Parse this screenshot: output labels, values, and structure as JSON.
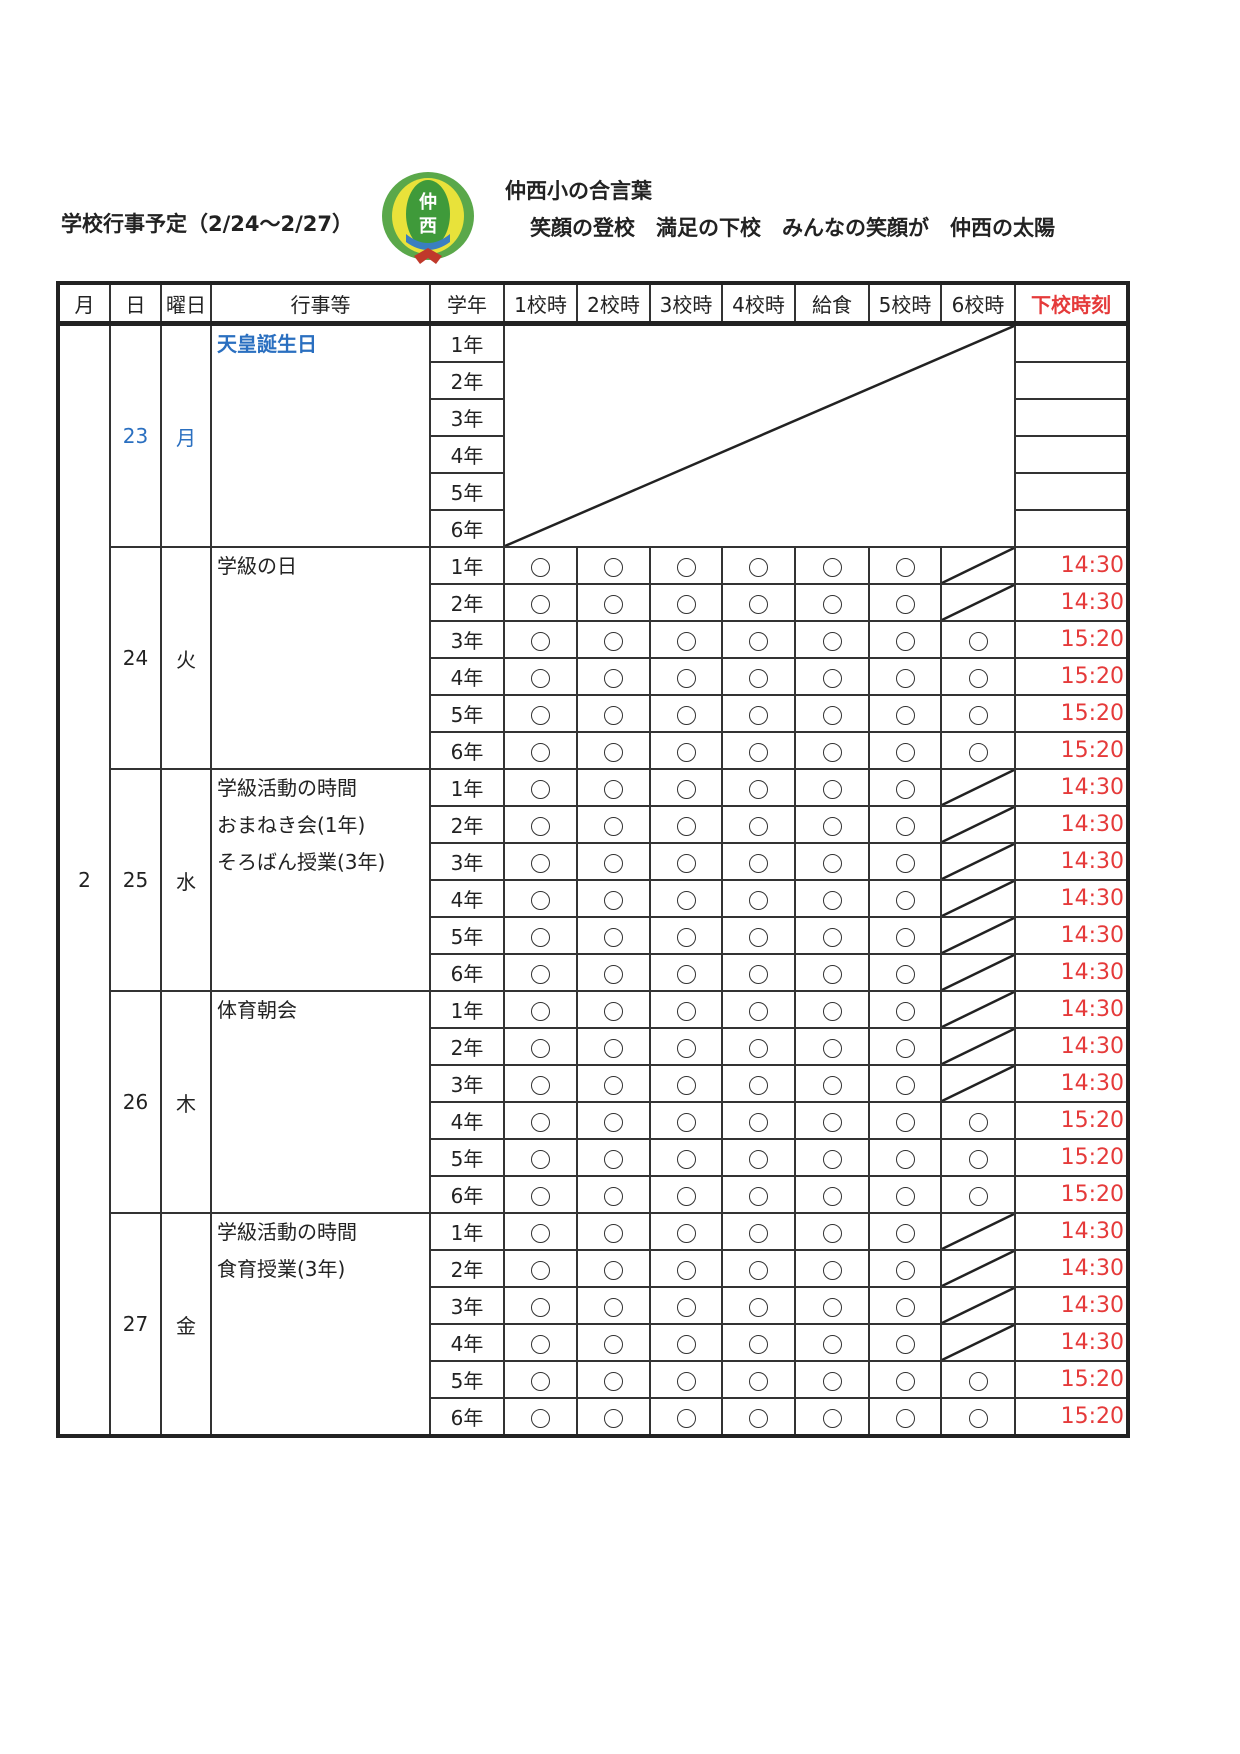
{
  "title": "学校行事予定（2/24～2/27）",
  "logo_text": "仲西",
  "motto_title": "仲西小の合言葉",
  "motto": "笑顔の登校　満足の下校　みんなの笑顔が　仲西の太陽",
  "colors": {
    "holiday": "#2a6fc0",
    "dismissal": "#e53a3a",
    "logo_green": "#3f9a3a",
    "logo_yellow": "#e8e23a"
  },
  "headers": [
    "月",
    "日",
    "曜日",
    "行事等",
    "学年",
    "1校時",
    "2校時",
    "3校時",
    "4校時",
    "給食",
    "5校時",
    "6校時",
    "下校時刻"
  ],
  "month": "2",
  "grades": [
    "1年",
    "2年",
    "3年",
    "4年",
    "5年",
    "6年"
  ],
  "days": [
    {
      "day": "23",
      "weekday": "月",
      "holiday": true,
      "events": [
        "天皇誕生日"
      ],
      "rows": []
    },
    {
      "day": "24",
      "weekday": "火",
      "events": [
        "学級の日"
      ],
      "rows": [
        {
          "p6": "slash",
          "time": "14:30"
        },
        {
          "p6": "slash",
          "time": "14:30"
        },
        {
          "p6": "○",
          "time": "15:20"
        },
        {
          "p6": "○",
          "time": "15:20"
        },
        {
          "p6": "○",
          "time": "15:20"
        },
        {
          "p6": "○",
          "time": "15:20"
        }
      ]
    },
    {
      "day": "25",
      "weekday": "水",
      "events": [
        "学級活動の時間",
        "おまねき会(1年)",
        "そろばん授業(3年)"
      ],
      "rows": [
        {
          "p6": "slash",
          "time": "14:30"
        },
        {
          "p6": "slash",
          "time": "14:30"
        },
        {
          "p6": "slash",
          "time": "14:30"
        },
        {
          "p6": "slash",
          "time": "14:30"
        },
        {
          "p6": "slash",
          "time": "14:30"
        },
        {
          "p6": "slash",
          "time": "14:30"
        }
      ]
    },
    {
      "day": "26",
      "weekday": "木",
      "events": [
        "体育朝会"
      ],
      "rows": [
        {
          "p6": "slash",
          "time": "14:30"
        },
        {
          "p6": "slash",
          "time": "14:30"
        },
        {
          "p6": "slash",
          "time": "14:30"
        },
        {
          "p6": "○",
          "time": "15:20"
        },
        {
          "p6": "○",
          "time": "15:20"
        },
        {
          "p6": "○",
          "time": "15:20"
        }
      ]
    },
    {
      "day": "27",
      "weekday": "金",
      "events": [
        "学級活動の時間",
        "食育授業(3年)"
      ],
      "rows": [
        {
          "p6": "slash",
          "time": "14:30"
        },
        {
          "p6": "slash",
          "time": "14:30"
        },
        {
          "p6": "slash",
          "time": "14:30"
        },
        {
          "p6": "slash",
          "time": "14:30"
        },
        {
          "p6": "○",
          "time": "15:20"
        },
        {
          "p6": "○",
          "time": "15:20"
        }
      ]
    }
  ]
}
